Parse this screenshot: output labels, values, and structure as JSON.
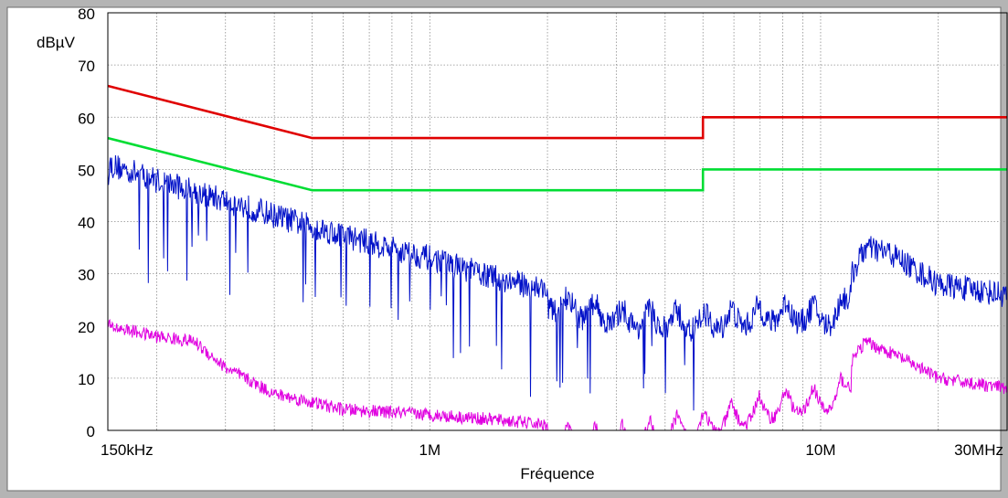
{
  "chart_data": {
    "type": "line",
    "title": "",
    "xlabel": "Fréquence",
    "ylabel": "dBµV",
    "x_scale": "log",
    "xlim": [
      150000,
      30000000
    ],
    "ylim": [
      0,
      80
    ],
    "grid": true,
    "x_tick_labels": [
      {
        "value": 150000,
        "label": "150kHz"
      },
      {
        "value": 1000000,
        "label": "1M"
      },
      {
        "value": 10000000,
        "label": "10M"
      },
      {
        "value": 30000000,
        "label": "30MHz"
      }
    ],
    "y_ticks": [
      0,
      10,
      20,
      30,
      40,
      50,
      60,
      70,
      80
    ],
    "series": [
      {
        "color": "#e00000",
        "style": "step-limit",
        "points": [
          [
            150000,
            66
          ],
          [
            500000,
            56
          ],
          [
            5000000,
            56
          ],
          [
            5000000,
            60
          ],
          [
            30000000,
            60
          ]
        ]
      },
      {
        "color": "#00dd33",
        "style": "step-limit",
        "points": [
          [
            150000,
            56
          ],
          [
            500000,
            46
          ],
          [
            5000000,
            46
          ],
          [
            5000000,
            50
          ],
          [
            30000000,
            50
          ]
        ]
      },
      {
        "color": "#0010c8",
        "style": "noisy",
        "points": [
          [
            150000,
            51
          ],
          [
            200000,
            48
          ],
          [
            300000,
            44
          ],
          [
            500000,
            39
          ],
          [
            700000,
            36
          ],
          [
            1000000,
            33
          ],
          [
            1500000,
            29
          ],
          [
            2000000,
            27
          ],
          [
            3000000,
            24
          ],
          [
            5000000,
            23
          ],
          [
            8000000,
            25
          ],
          [
            11000000,
            24
          ],
          [
            13000000,
            35
          ],
          [
            15000000,
            34
          ],
          [
            20000000,
            28
          ],
          [
            30000000,
            26
          ]
        ]
      },
      {
        "color": "#e000e0",
        "style": "noisy",
        "points": [
          [
            150000,
            20
          ],
          [
            200000,
            18
          ],
          [
            250000,
            17
          ],
          [
            300000,
            12
          ],
          [
            400000,
            7
          ],
          [
            600000,
            4
          ],
          [
            1000000,
            3
          ],
          [
            1500000,
            2
          ],
          [
            2000000,
            1
          ],
          [
            3000000,
            1
          ],
          [
            5000000,
            4
          ],
          [
            8000000,
            8
          ],
          [
            11000000,
            9
          ],
          [
            13000000,
            17
          ],
          [
            16000000,
            14
          ],
          [
            20000000,
            10
          ],
          [
            30000000,
            8
          ]
        ]
      }
    ]
  }
}
